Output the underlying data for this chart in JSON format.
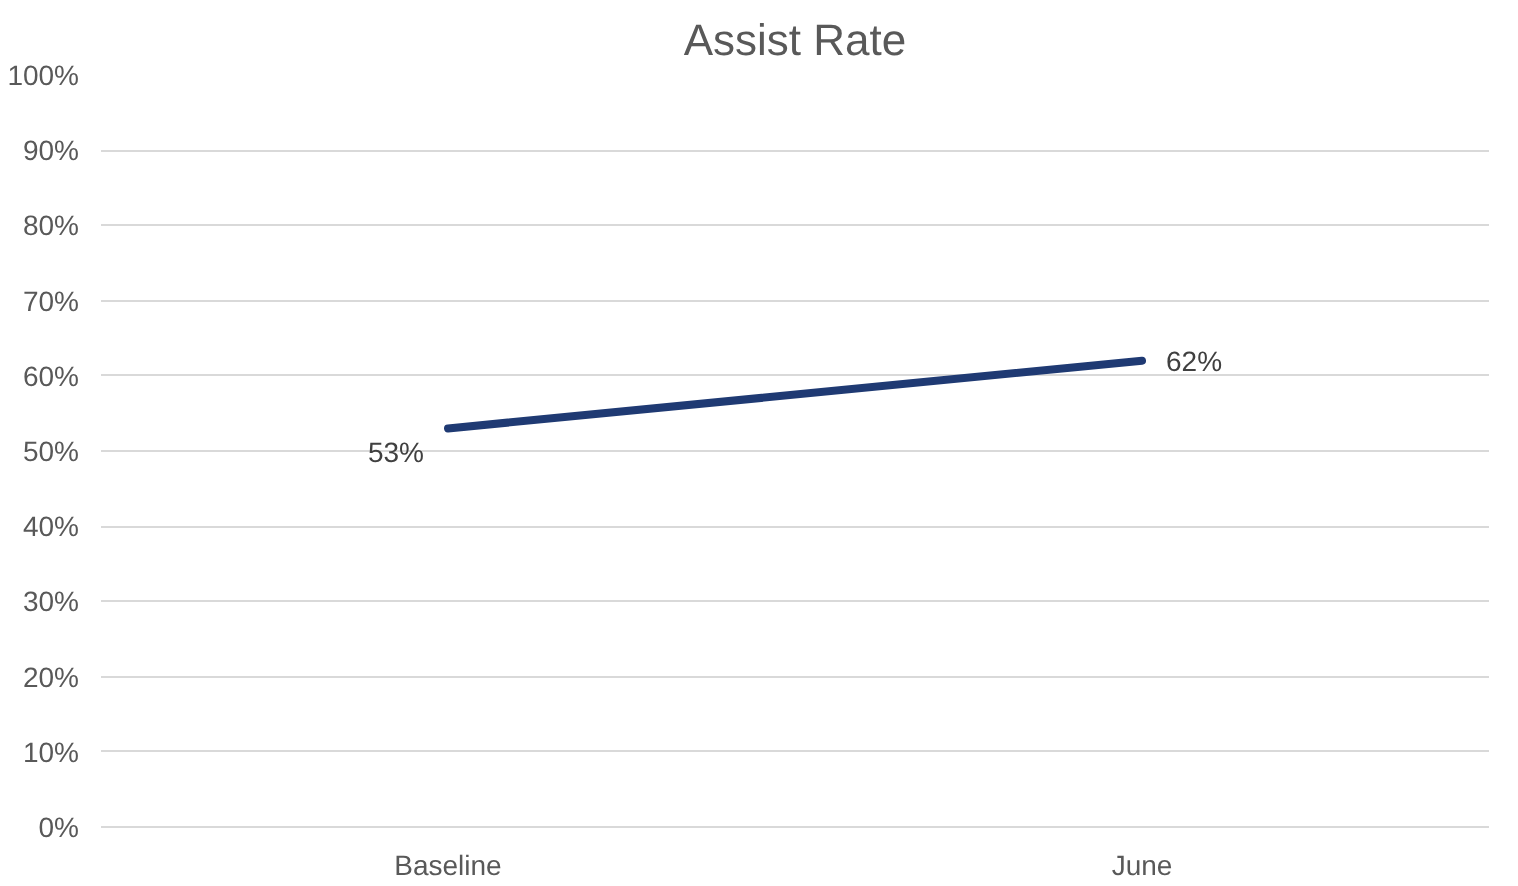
{
  "chart_data": {
    "type": "line",
    "title": "Assist Rate",
    "categories": [
      "Baseline",
      "June"
    ],
    "series": [
      {
        "color": "#1f3a73",
        "values": [
          53,
          62
        ],
        "value_labels": [
          "53%",
          "62%"
        ]
      }
    ],
    "ylim": [
      0,
      100
    ],
    "yticks": [
      {
        "value": 0,
        "label": "0%"
      },
      {
        "value": 10,
        "label": "10%"
      },
      {
        "value": 20,
        "label": "20%"
      },
      {
        "value": 30,
        "label": "30%"
      },
      {
        "value": 40,
        "label": "40%"
      },
      {
        "value": 50,
        "label": "50%"
      },
      {
        "value": 60,
        "label": "60%"
      },
      {
        "value": 70,
        "label": "70%"
      },
      {
        "value": 80,
        "label": "80%"
      },
      {
        "value": 90,
        "label": "90%"
      },
      {
        "value": 100,
        "label": "100%"
      }
    ],
    "grid": "y",
    "marker": "none",
    "line_style": "solid"
  }
}
